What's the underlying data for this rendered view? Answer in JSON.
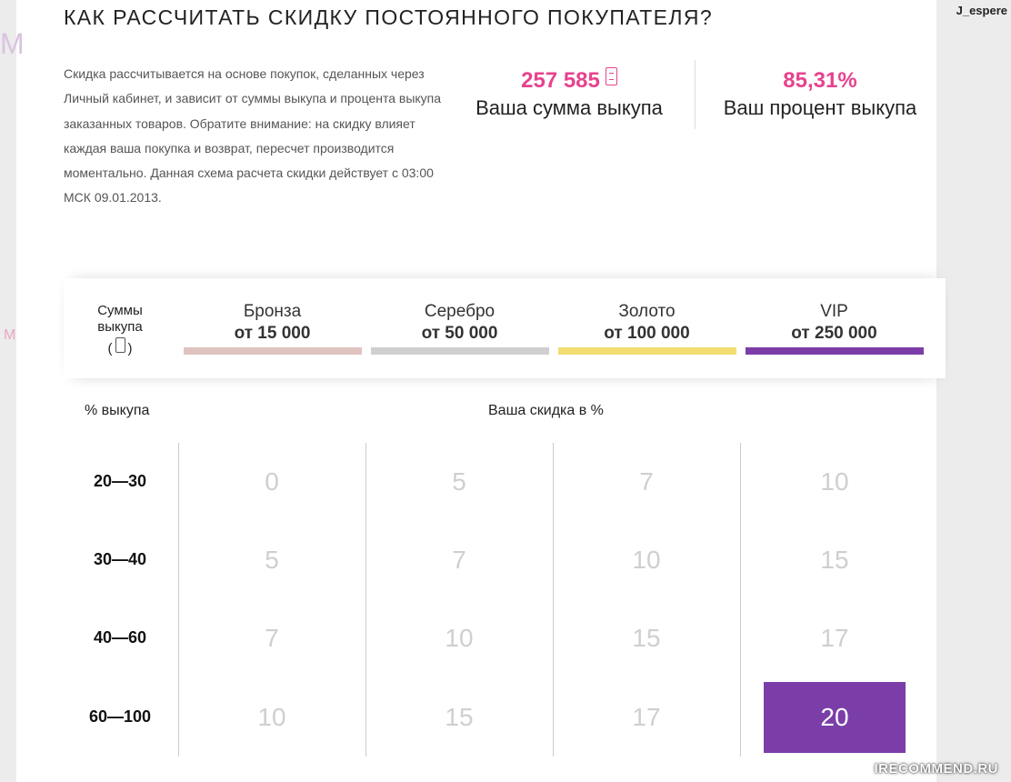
{
  "user": {
    "name": "J_espere"
  },
  "title": "КАК РАССЧИТАТЬ СКИДКУ ПОСТОЯННОГО ПОКУПАТЕЛЯ?",
  "intro": "Скидка рассчитывается на основе покупок, сделанных через Личный кабинет, и зависит от суммы выкупа и процента выкупа заказанных товаров. Обратите внимание: на скидку влияет каждая ваша покупка и возврат, пересчет производится моментально. Данная схема расчета скидки действует с 03:00 МСК 09.01.2013.",
  "stats": {
    "sum": {
      "value": "257 585",
      "label": "Ваша сумма выкупа",
      "icon": "currency-icon"
    },
    "percent": {
      "value": "85,31%",
      "label": "Ваш процент выкупа"
    }
  },
  "table": {
    "sum_label_line1": "Суммы",
    "sum_label_line2": "выкупа",
    "percent_header": "% выкупа",
    "discount_header": "Ваша скидка в %",
    "tiers": [
      {
        "name": "Бронза",
        "range": "от 15 000",
        "color": "#dfc3bf"
      },
      {
        "name": "Серебро",
        "range": "от 50 000",
        "color": "#cfcfcf"
      },
      {
        "name": "Золото",
        "range": "от 100 000",
        "color": "#f1dd70"
      },
      {
        "name": "VIP",
        "range": "от 250 000",
        "color": "#7b3ea8"
      }
    ],
    "rows": [
      {
        "label": "20—30",
        "values": [
          "0",
          "5",
          "7",
          "10"
        ]
      },
      {
        "label": "30—40",
        "values": [
          "5",
          "7",
          "10",
          "15"
        ]
      },
      {
        "label": "40—60",
        "values": [
          "7",
          "10",
          "15",
          "17"
        ]
      },
      {
        "label": "60—100",
        "values": [
          "10",
          "15",
          "17",
          "20"
        ]
      }
    ],
    "active_cell": {
      "row": 3,
      "col": 3
    }
  },
  "colors": {
    "accent": "#e6438e",
    "active": "#7b3ea8"
  },
  "watermark": "IRECOMMEND.RU"
}
